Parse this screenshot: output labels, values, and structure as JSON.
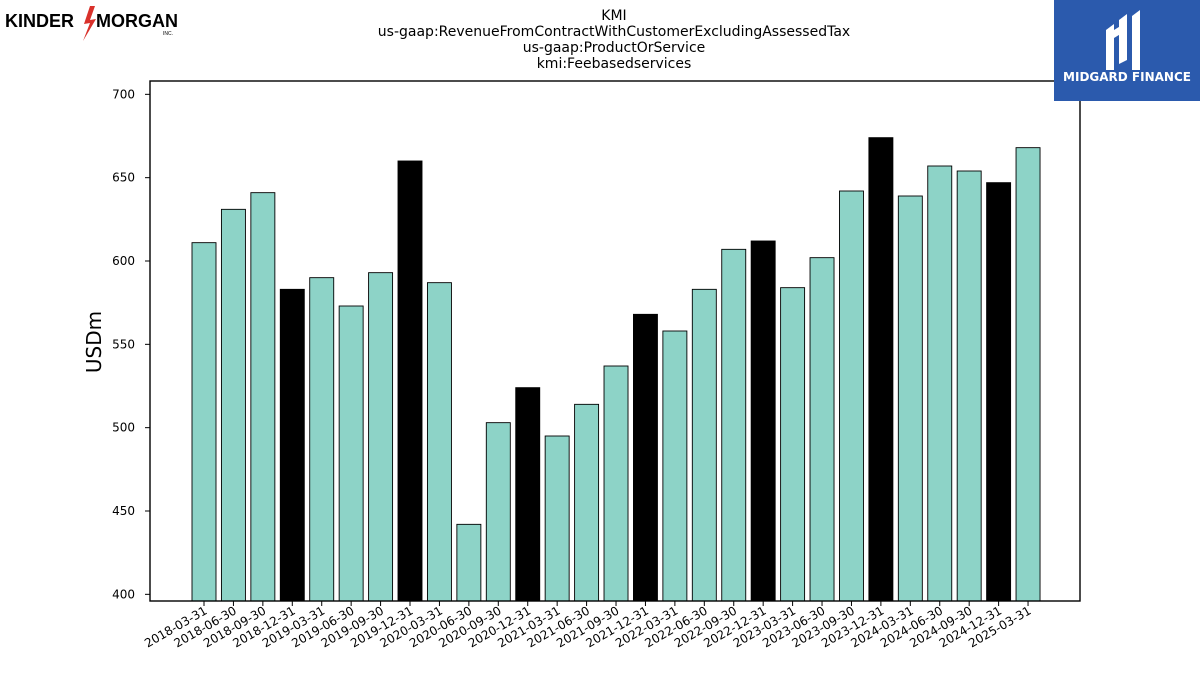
{
  "header": {
    "kinder_logo_text": "KINDER MORGAN",
    "kinder_logo_left": "KINDER",
    "kinder_logo_right": "MORGAN",
    "kinder_logo_sub": "INC.",
    "midgard_logo_text": "MIDGARD FINANCE"
  },
  "colors": {
    "bar_normal": "#8dd3c7",
    "bar_highlight": "#000000",
    "midgard_bg": "#2b5aad",
    "kinder_accent": "#d9312b"
  },
  "chart_data": {
    "type": "bar",
    "title_lines": [
      "KMI",
      "us-gaap:RevenueFromContractWithCustomerExcludingAssessedTax",
      "us-gaap:ProductOrService",
      "kmi:Feebasedservices"
    ],
    "xlabel": "",
    "ylabel": "USDm",
    "ylim": [
      396,
      708
    ],
    "yticks": [
      400,
      450,
      500,
      550,
      600,
      650,
      700
    ],
    "grid": false,
    "categories": [
      "2018-03-31",
      "2018-06-30",
      "2018-09-30",
      "2018-12-31",
      "2019-03-31",
      "2019-06-30",
      "2019-09-30",
      "2019-12-31",
      "2020-03-31",
      "2020-06-30",
      "2020-09-30",
      "2020-12-31",
      "2021-03-31",
      "2021-06-30",
      "2021-09-30",
      "2021-12-31",
      "2022-03-31",
      "2022-06-30",
      "2022-09-30",
      "2022-12-31",
      "2023-03-31",
      "2023-06-30",
      "2023-09-30",
      "2023-12-31",
      "2024-03-31",
      "2024-06-30",
      "2024-09-30",
      "2024-12-31",
      "2025-03-31"
    ],
    "values": [
      611,
      631,
      641,
      583,
      590,
      573,
      593,
      660,
      587,
      442,
      503,
      524,
      495,
      514,
      537,
      568,
      558,
      583,
      607,
      612,
      584,
      602,
      642,
      674,
      639,
      657,
      654,
      647,
      668
    ],
    "highlight": [
      false,
      false,
      false,
      true,
      false,
      false,
      false,
      true,
      false,
      false,
      false,
      true,
      false,
      false,
      false,
      true,
      false,
      false,
      false,
      true,
      false,
      false,
      false,
      true,
      false,
      false,
      false,
      true,
      false
    ]
  }
}
